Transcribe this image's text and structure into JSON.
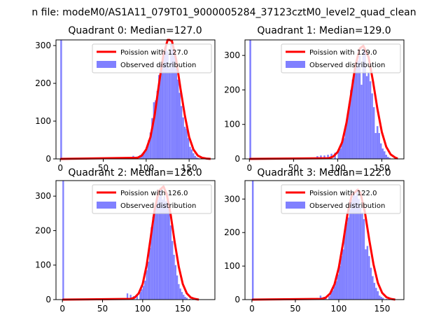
{
  "figure": {
    "suptitle": "n file: modeM0/AS1A11_079T01_9000005284_37123cztM0_level2_quad_clean"
  },
  "colors": {
    "histogram": "#8080ff",
    "fit_line": "#ff0000",
    "axes": "#000000",
    "background": "#ffffff"
  },
  "chart_data": [
    {
      "type": "bar",
      "title": "Quadrant 0: Median=127.0",
      "legend": [
        "Poission with 127.0",
        "Observed distribution"
      ],
      "legend_position": "top-right",
      "grid": false,
      "xlim": [
        -5,
        180
      ],
      "ylim": [
        0,
        315
      ],
      "xticks": [
        0,
        50,
        100,
        150
      ],
      "yticks": [
        0,
        100,
        200,
        300
      ],
      "hist_bins": [
        [
          0,
          2,
          315
        ],
        [
          2,
          4,
          2
        ],
        [
          10,
          12,
          1
        ],
        [
          30,
          32,
          1
        ],
        [
          55,
          57,
          1
        ],
        [
          70,
          72,
          1
        ],
        [
          80,
          82,
          3
        ],
        [
          84,
          86,
          8
        ],
        [
          88,
          90,
          6
        ],
        [
          92,
          94,
          10
        ],
        [
          94,
          96,
          14
        ],
        [
          96,
          98,
          18
        ],
        [
          98,
          100,
          22
        ],
        [
          100,
          102,
          30
        ],
        [
          102,
          104,
          50
        ],
        [
          104,
          106,
          70
        ],
        [
          106,
          108,
          108
        ],
        [
          108,
          110,
          150
        ],
        [
          110,
          112,
          155
        ],
        [
          112,
          114,
          180
        ],
        [
          114,
          116,
          222
        ],
        [
          116,
          118,
          250
        ],
        [
          118,
          120,
          262
        ],
        [
          120,
          122,
          285
        ],
        [
          122,
          124,
          300
        ],
        [
          124,
          126,
          285
        ],
        [
          126,
          128,
          240
        ],
        [
          128,
          130,
          305
        ],
        [
          130,
          132,
          290
        ],
        [
          132,
          134,
          275
        ],
        [
          134,
          136,
          240
        ],
        [
          136,
          138,
          210
        ],
        [
          138,
          140,
          175
        ],
        [
          140,
          142,
          140
        ],
        [
          142,
          144,
          110
        ],
        [
          144,
          146,
          85
        ],
        [
          146,
          148,
          80
        ],
        [
          148,
          150,
          55
        ],
        [
          150,
          152,
          32
        ],
        [
          152,
          154,
          25
        ],
        [
          154,
          156,
          15
        ],
        [
          156,
          158,
          8
        ],
        [
          158,
          160,
          4
        ],
        [
          160,
          162,
          2
        ],
        [
          164,
          166,
          1
        ],
        [
          172,
          174,
          1
        ]
      ],
      "fit_curve": {
        "x": [
          0,
          90,
          95,
          100,
          105,
          110,
          115,
          120,
          125,
          127,
          130,
          135,
          140,
          145,
          150,
          155,
          160,
          165,
          170,
          175
        ],
        "y": [
          0,
          3,
          9,
          25,
          58,
          118,
          200,
          275,
          318,
          325,
          312,
          262,
          185,
          115,
          58,
          25,
          9,
          3,
          1,
          0
        ]
      }
    },
    {
      "type": "bar",
      "title": "Quadrant 1: Median=129.0",
      "legend": [
        "Poission with 129.0",
        "Observed distribution"
      ],
      "legend_position": "top-right",
      "grid": false,
      "xlim": [
        -5,
        175
      ],
      "ylim": [
        0,
        345
      ],
      "xticks": [
        0,
        50,
        100,
        150
      ],
      "yticks": [
        0,
        100,
        200,
        300
      ],
      "hist_bins": [
        [
          0,
          2,
          345
        ],
        [
          2,
          4,
          2
        ],
        [
          20,
          22,
          1
        ],
        [
          45,
          47,
          1
        ],
        [
          60,
          62,
          2
        ],
        [
          70,
          72,
          3
        ],
        [
          76,
          78,
          8
        ],
        [
          80,
          82,
          10
        ],
        [
          84,
          86,
          10
        ],
        [
          88,
          90,
          12
        ],
        [
          92,
          94,
          15
        ],
        [
          96,
          98,
          18
        ],
        [
          100,
          102,
          22
        ],
        [
          102,
          104,
          30
        ],
        [
          104,
          106,
          45
        ],
        [
          106,
          108,
          60
        ],
        [
          108,
          110,
          90
        ],
        [
          110,
          112,
          120
        ],
        [
          112,
          114,
          160
        ],
        [
          114,
          116,
          200
        ],
        [
          116,
          118,
          230
        ],
        [
          118,
          120,
          250
        ],
        [
          120,
          122,
          265
        ],
        [
          122,
          124,
          285
        ],
        [
          124,
          126,
          300
        ],
        [
          126,
          128,
          215
        ],
        [
          128,
          130,
          320
        ],
        [
          130,
          132,
          310
        ],
        [
          132,
          134,
          240
        ],
        [
          134,
          136,
          250
        ],
        [
          136,
          138,
          225
        ],
        [
          138,
          140,
          190
        ],
        [
          140,
          142,
          150
        ],
        [
          142,
          144,
          75
        ],
        [
          144,
          146,
          95
        ],
        [
          146,
          148,
          75
        ],
        [
          148,
          150,
          45
        ],
        [
          150,
          152,
          30
        ],
        [
          152,
          154,
          22
        ],
        [
          154,
          156,
          12
        ],
        [
          156,
          158,
          6
        ],
        [
          158,
          160,
          3
        ],
        [
          162,
          164,
          1
        ]
      ],
      "fit_curve": {
        "x": [
          0,
          90,
          95,
          100,
          105,
          110,
          115,
          120,
          125,
          129,
          135,
          140,
          145,
          150,
          155,
          160,
          165,
          168
        ],
        "y": [
          0,
          2,
          7,
          20,
          48,
          105,
          185,
          270,
          320,
          328,
          295,
          225,
          145,
          78,
          35,
          13,
          4,
          1
        ]
      }
    },
    {
      "type": "bar",
      "title": "Quadrant 2: Median=126.0",
      "legend": [
        "Poission with 126.0",
        "Observed distribution"
      ],
      "legend_position": "top-right",
      "grid": false,
      "xlim": [
        -8,
        190
      ],
      "ylim": [
        0,
        345
      ],
      "xticks": [
        0,
        50,
        100,
        150
      ],
      "yticks": [
        0,
        100,
        200,
        300
      ],
      "hist_bins": [
        [
          0,
          2,
          345
        ],
        [
          2,
          4,
          2
        ],
        [
          20,
          22,
          1
        ],
        [
          50,
          52,
          1
        ],
        [
          75,
          77,
          2
        ],
        [
          80,
          82,
          18
        ],
        [
          84,
          86,
          14
        ],
        [
          88,
          90,
          10
        ],
        [
          92,
          94,
          12
        ],
        [
          96,
          98,
          22
        ],
        [
          98,
          100,
          30
        ],
        [
          100,
          102,
          40
        ],
        [
          102,
          104,
          55
        ],
        [
          104,
          106,
          85
        ],
        [
          106,
          108,
          110
        ],
        [
          108,
          110,
          150
        ],
        [
          110,
          112,
          210
        ],
        [
          112,
          114,
          240
        ],
        [
          114,
          116,
          265
        ],
        [
          116,
          118,
          280
        ],
        [
          118,
          120,
          290
        ],
        [
          120,
          122,
          300
        ],
        [
          122,
          124,
          320
        ],
        [
          124,
          126,
          290
        ],
        [
          126,
          128,
          300
        ],
        [
          128,
          130,
          285
        ],
        [
          130,
          132,
          310
        ],
        [
          132,
          134,
          260
        ],
        [
          134,
          136,
          215
        ],
        [
          136,
          138,
          170
        ],
        [
          138,
          140,
          130
        ],
        [
          140,
          142,
          100
        ],
        [
          142,
          144,
          70
        ],
        [
          144,
          146,
          45
        ],
        [
          146,
          148,
          32
        ],
        [
          148,
          150,
          22
        ],
        [
          150,
          152,
          14
        ],
        [
          152,
          154,
          8
        ],
        [
          154,
          156,
          5
        ],
        [
          158,
          160,
          2
        ],
        [
          166,
          168,
          1
        ]
      ],
      "fit_curve": {
        "x": [
          0,
          85,
          90,
          95,
          100,
          105,
          110,
          115,
          120,
          126,
          130,
          135,
          140,
          145,
          150,
          155,
          160,
          165,
          170
        ],
        "y": [
          0,
          2,
          6,
          18,
          45,
          100,
          180,
          262,
          315,
          328,
          305,
          245,
          165,
          95,
          45,
          18,
          6,
          2,
          0
        ]
      }
    },
    {
      "type": "bar",
      "title": "Quadrant 3: Median=122.0",
      "legend": [
        "Poission with 122.0",
        "Observed distribution"
      ],
      "legend_position": "top-right",
      "grid": false,
      "xlim": [
        -8,
        175
      ],
      "ylim": [
        0,
        355
      ],
      "xticks": [
        0,
        50,
        100,
        150
      ],
      "yticks": [
        0,
        100,
        200,
        300
      ],
      "hist_bins": [
        [
          0,
          2,
          355
        ],
        [
          2,
          4,
          2
        ],
        [
          40,
          42,
          1
        ],
        [
          60,
          62,
          1
        ],
        [
          70,
          72,
          3
        ],
        [
          74,
          76,
          5
        ],
        [
          78,
          80,
          12
        ],
        [
          80,
          82,
          6
        ],
        [
          82,
          84,
          8
        ],
        [
          84,
          86,
          5
        ],
        [
          88,
          90,
          10
        ],
        [
          90,
          92,
          22
        ],
        [
          92,
          94,
          28
        ],
        [
          94,
          96,
          40
        ],
        [
          96,
          98,
          55
        ],
        [
          98,
          100,
          75
        ],
        [
          100,
          102,
          100
        ],
        [
          102,
          104,
          130
        ],
        [
          104,
          106,
          150
        ],
        [
          106,
          108,
          200
        ],
        [
          108,
          110,
          230
        ],
        [
          110,
          112,
          245
        ],
        [
          112,
          114,
          270
        ],
        [
          114,
          116,
          300
        ],
        [
          116,
          118,
          320
        ],
        [
          118,
          120,
          310
        ],
        [
          120,
          122,
          330
        ],
        [
          122,
          124,
          300
        ],
        [
          124,
          126,
          275
        ],
        [
          126,
          128,
          260
        ],
        [
          128,
          130,
          240
        ],
        [
          130,
          132,
          150
        ],
        [
          132,
          134,
          160
        ],
        [
          134,
          136,
          130
        ],
        [
          136,
          138,
          95
        ],
        [
          138,
          140,
          70
        ],
        [
          140,
          142,
          50
        ],
        [
          142,
          144,
          35
        ],
        [
          144,
          146,
          25
        ],
        [
          146,
          148,
          12
        ],
        [
          148,
          150,
          8
        ],
        [
          150,
          152,
          5
        ],
        [
          154,
          156,
          2
        ],
        [
          160,
          162,
          1
        ]
      ],
      "fit_curve": {
        "x": [
          0,
          80,
          85,
          90,
          95,
          100,
          105,
          110,
          115,
          122,
          125,
          130,
          135,
          140,
          145,
          150,
          155,
          160,
          165
        ],
        "y": [
          0,
          2,
          6,
          18,
          45,
          95,
          170,
          255,
          312,
          328,
          318,
          262,
          180,
          105,
          50,
          20,
          7,
          2,
          0
        ]
      }
    }
  ]
}
